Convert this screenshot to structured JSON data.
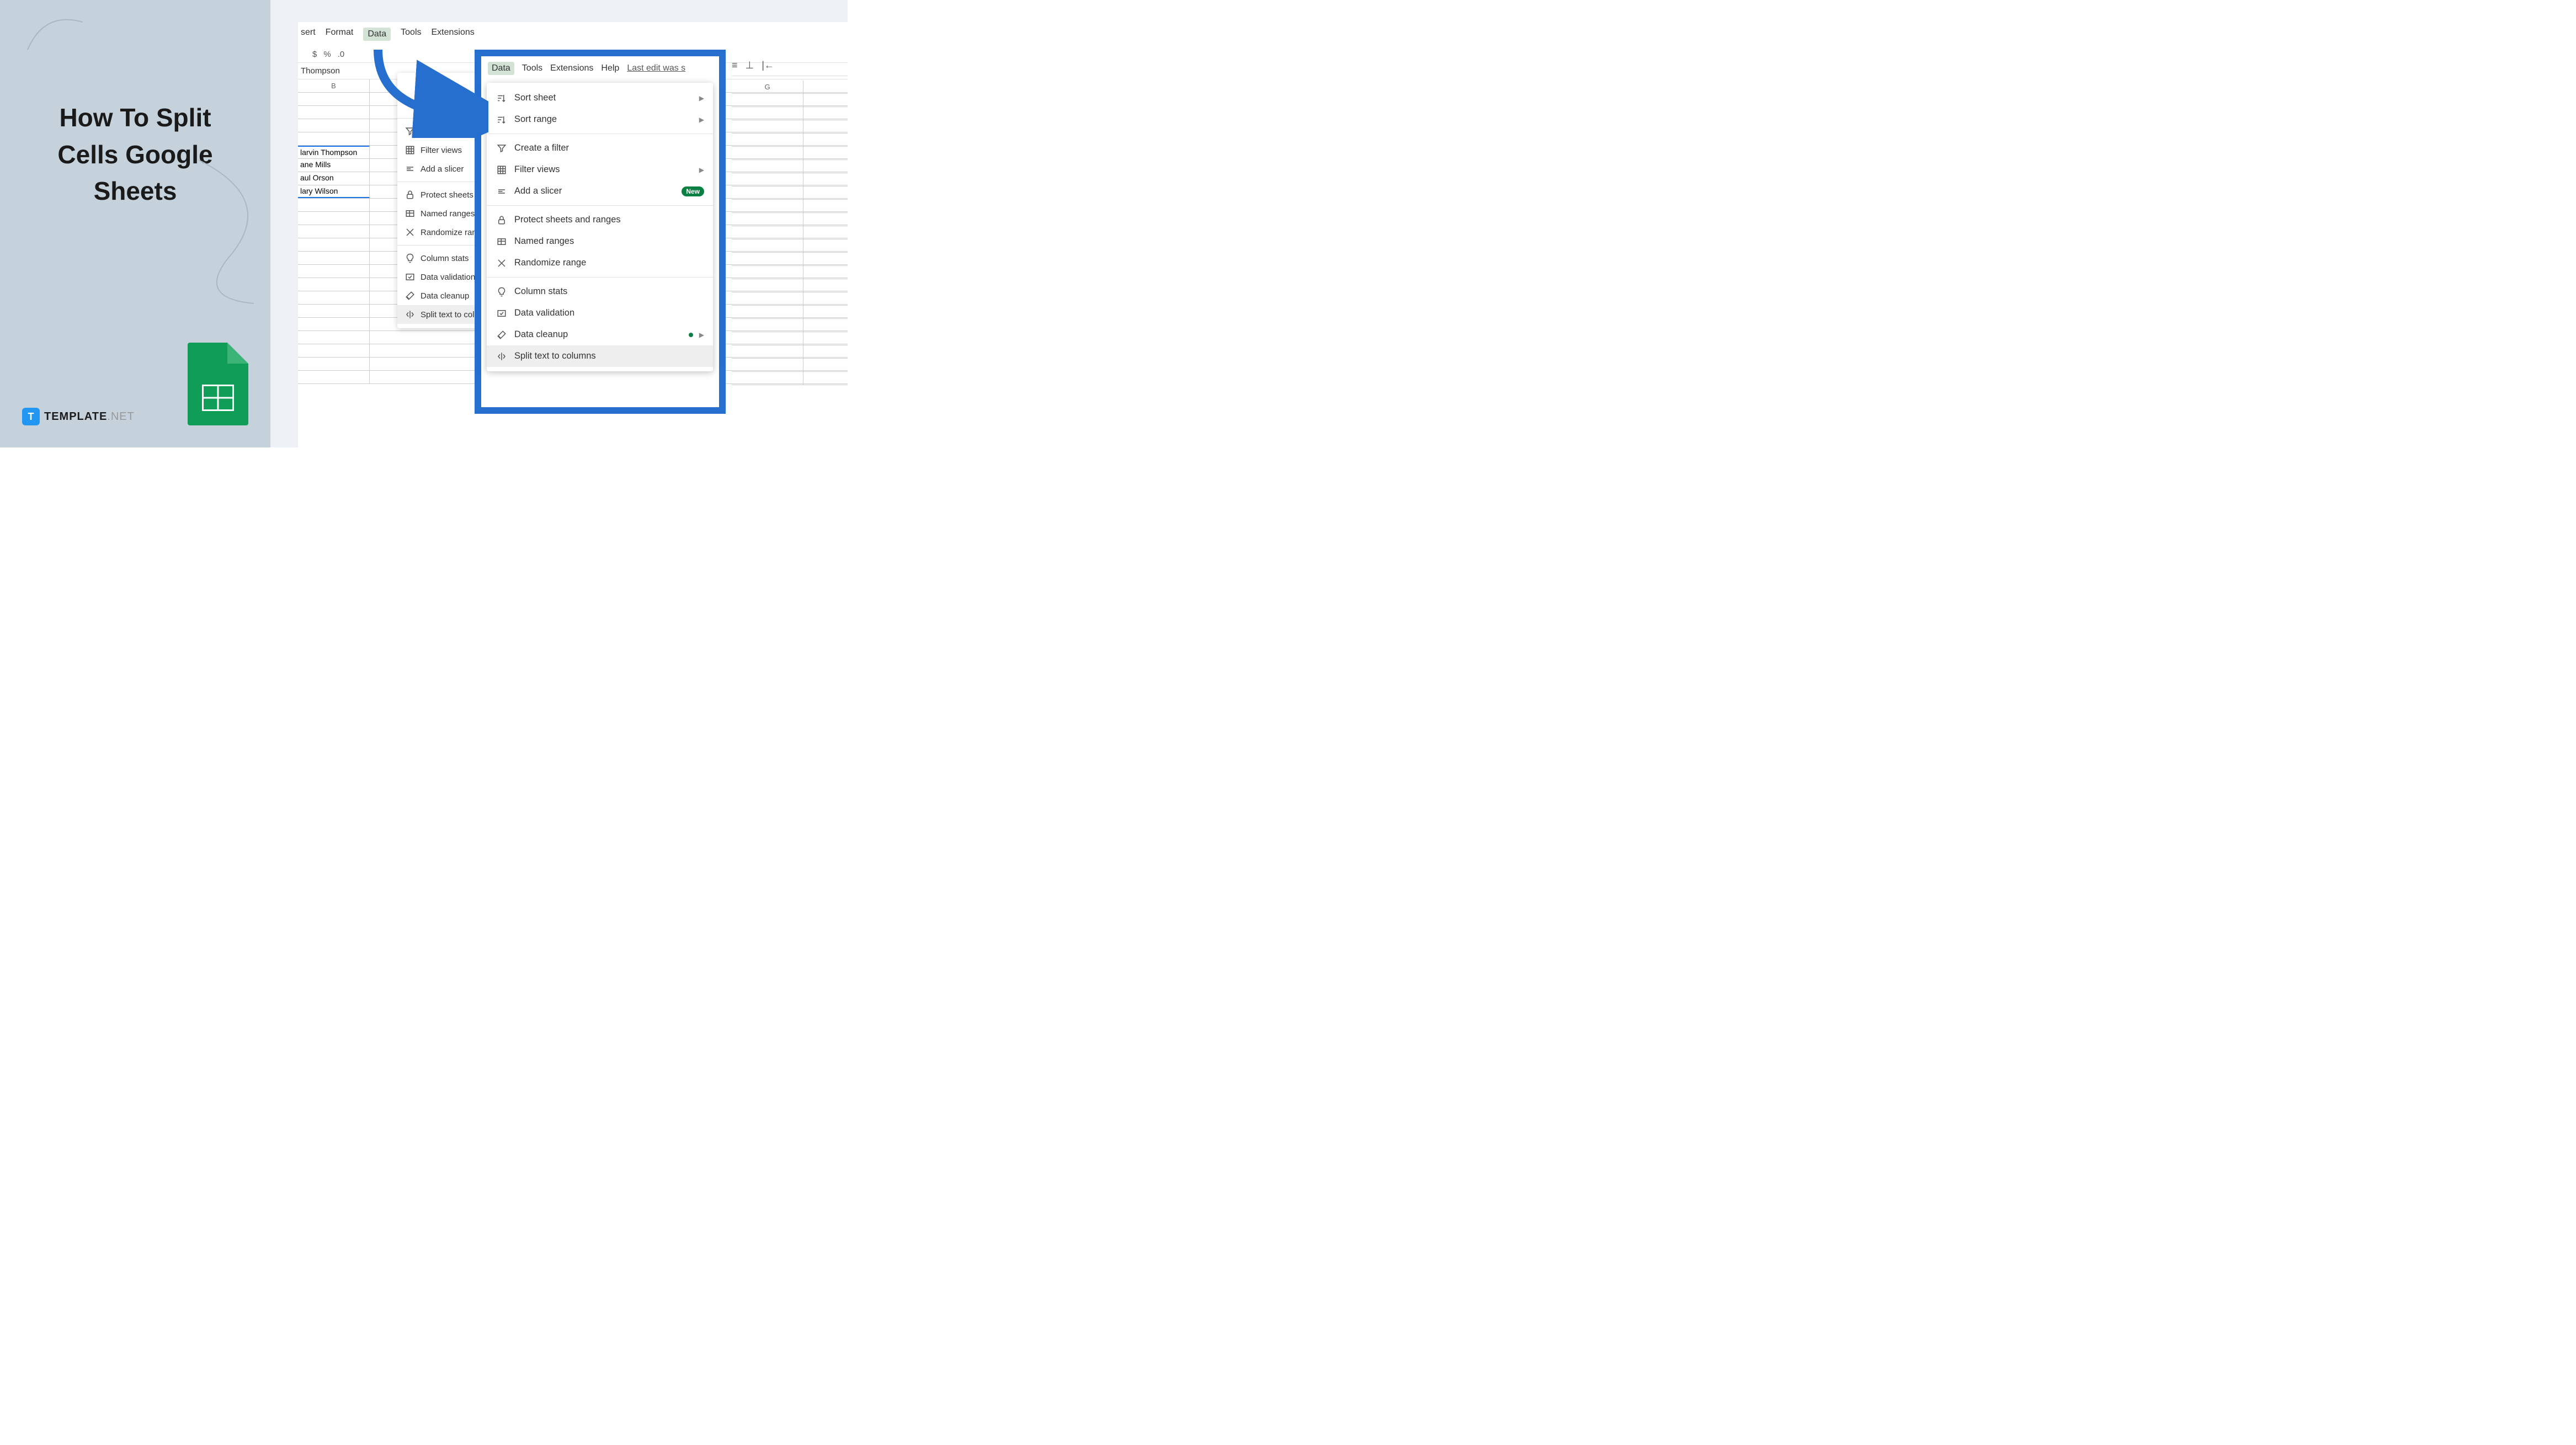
{
  "title": "How To Split Cells Google Sheets",
  "logo": {
    "badge": "T",
    "name": "TEMPLATE",
    "suffix": ".NET"
  },
  "colors": {
    "left_bg": "#c5d2dc",
    "right_bg": "#edf1f5",
    "border_blue": "#266fce",
    "arrow_blue": "#266fce",
    "sheets_green": "#0f9d58",
    "new_badge": "#0b8043",
    "menu_active_bg": "#d2e3d5",
    "highlight_bg": "#eeeeee"
  },
  "bg_sheet": {
    "menus": [
      "sert",
      "Format",
      "Data",
      "Tools",
      "Extensions"
    ],
    "active_menu": "Data",
    "toolbar": [
      "$",
      "%",
      ".0"
    ],
    "cell_value": "Thompson",
    "col_header": "B",
    "names": [
      "larvin Thompson",
      "ane Mills",
      "aul Orson",
      "lary Wilson"
    ],
    "dropdown": [
      {
        "label": "Sort sheet",
        "icon": ""
      },
      {
        "label": "Sort range",
        "icon": ""
      },
      {
        "sep": true
      },
      {
        "label": "Create a filter",
        "icon": "filter"
      },
      {
        "label": "Filter views",
        "icon": "grid"
      },
      {
        "label": "Add a slicer",
        "icon": "slicer"
      },
      {
        "sep": true
      },
      {
        "label": "Protect sheets and",
        "icon": "lock"
      },
      {
        "label": "Named ranges",
        "icon": "range"
      },
      {
        "label": "Randomize range",
        "icon": "random"
      },
      {
        "sep": true
      },
      {
        "label": "Column stats",
        "icon": "bulb"
      },
      {
        "label": "Data validation",
        "icon": "valid"
      },
      {
        "label": "Data cleanup",
        "icon": "clean"
      },
      {
        "label": "Split text to columns",
        "icon": "split",
        "hl": true
      }
    ]
  },
  "fg_panel": {
    "menus": [
      "Data",
      "Tools",
      "Extensions",
      "Help"
    ],
    "active_menu": "Data",
    "edit_text": "Last edit was s",
    "dropdown": [
      {
        "label": "Sort sheet",
        "icon": "sort",
        "chev": true
      },
      {
        "label": "Sort range",
        "icon": "sort",
        "chev": true
      },
      {
        "sep": true
      },
      {
        "label": "Create a filter",
        "icon": "filter"
      },
      {
        "label": "Filter views",
        "icon": "grid",
        "chev": true
      },
      {
        "label": "Add a slicer",
        "icon": "slicer",
        "new": true
      },
      {
        "sep": true
      },
      {
        "label": "Protect sheets and ranges",
        "icon": "lock"
      },
      {
        "label": "Named ranges",
        "icon": "range"
      },
      {
        "label": "Randomize range",
        "icon": "random"
      },
      {
        "sep": true
      },
      {
        "label": "Column stats",
        "icon": "bulb"
      },
      {
        "label": "Data validation",
        "icon": "valid"
      },
      {
        "label": "Data cleanup",
        "icon": "clean",
        "dot": true,
        "chev": true
      },
      {
        "label": "Split text to columns",
        "icon": "split",
        "hl": true
      }
    ]
  },
  "far_right": {
    "toolbar_icons": [
      "≡",
      "⊥",
      "|←"
    ],
    "col_header": "G"
  },
  "new_label": "New"
}
